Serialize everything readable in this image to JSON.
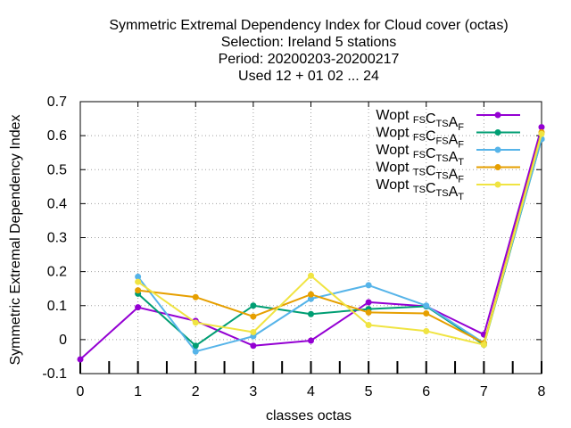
{
  "chart_data": {
    "type": "line",
    "title_lines": [
      "Symmetric Extremal Dependency Index  for Cloud cover (octas)",
      "Selection: Ireland      5 stations",
      "Period: 20200203-20200217",
      "Used  12 + 01 02 ... 24"
    ],
    "xlabel": "classes octas",
    "ylabel": "Symmetric Extremal Dependency Index",
    "xlim": [
      0,
      8
    ],
    "ylim": [
      -0.1,
      0.7
    ],
    "x_ticks": [
      0,
      1,
      2,
      3,
      4,
      5,
      6,
      7,
      8
    ],
    "y_ticks": [
      -0.1,
      0,
      0.1,
      0.2,
      0.3,
      0.4,
      0.5,
      0.6,
      0.7
    ],
    "y_tick_labels": [
      "-0.1",
      "0",
      "0.1",
      "0.2",
      "0.3",
      "0.4",
      "0.5",
      "0.6",
      "0.7"
    ],
    "grid": true,
    "legend_position": "top-right",
    "series": [
      {
        "name": "Wopt FS CTS AF",
        "base": [
          "Wopt ",
          "C",
          "A"
        ],
        "subs": [
          "FS",
          "TS",
          "F"
        ],
        "color": "#9400d3",
        "x": [
          0,
          1,
          2,
          3,
          4,
          5,
          6,
          7,
          8
        ],
        "values": [
          -0.058,
          0.095,
          0.055,
          -0.018,
          -0.003,
          0.11,
          0.098,
          0.015,
          0.625
        ]
      },
      {
        "name": "Wopt FS CFS AF",
        "base": [
          "Wopt ",
          "C",
          "A"
        ],
        "subs": [
          "FS",
          "FS",
          "F"
        ],
        "color": "#009e73",
        "x": [
          1,
          2,
          3,
          4,
          5,
          6,
          7,
          8
        ],
        "values": [
          0.135,
          -0.018,
          0.1,
          0.075,
          0.09,
          0.098,
          -0.015,
          0.59
        ]
      },
      {
        "name": "Wopt FS CTS AT",
        "base": [
          "Wopt ",
          "C",
          "A"
        ],
        "subs": [
          "FS",
          "TS",
          "T"
        ],
        "color": "#56b4e9",
        "x": [
          1,
          2,
          3,
          4,
          5,
          6,
          7,
          8
        ],
        "values": [
          0.185,
          -0.035,
          0.01,
          0.12,
          0.16,
          0.1,
          -0.01,
          0.59
        ]
      },
      {
        "name": "Wopt TS CTS AF",
        "base": [
          "Wopt ",
          "C",
          "A"
        ],
        "subs": [
          "TS",
          "TS",
          "F"
        ],
        "color": "#e69f00",
        "x": [
          1,
          2,
          3,
          4,
          5,
          6,
          7,
          8
        ],
        "values": [
          0.145,
          0.125,
          0.068,
          0.133,
          0.08,
          0.077,
          -0.01,
          0.61
        ]
      },
      {
        "name": "Wopt TS CTS AT",
        "base": [
          "Wopt ",
          "C",
          "A"
        ],
        "subs": [
          "TS",
          "TS",
          "T"
        ],
        "color": "#f0e442",
        "x": [
          1,
          2,
          3,
          4,
          5,
          6,
          7,
          8
        ],
        "values": [
          0.17,
          0.05,
          0.022,
          0.188,
          0.043,
          0.025,
          -0.015,
          0.605
        ]
      }
    ]
  }
}
